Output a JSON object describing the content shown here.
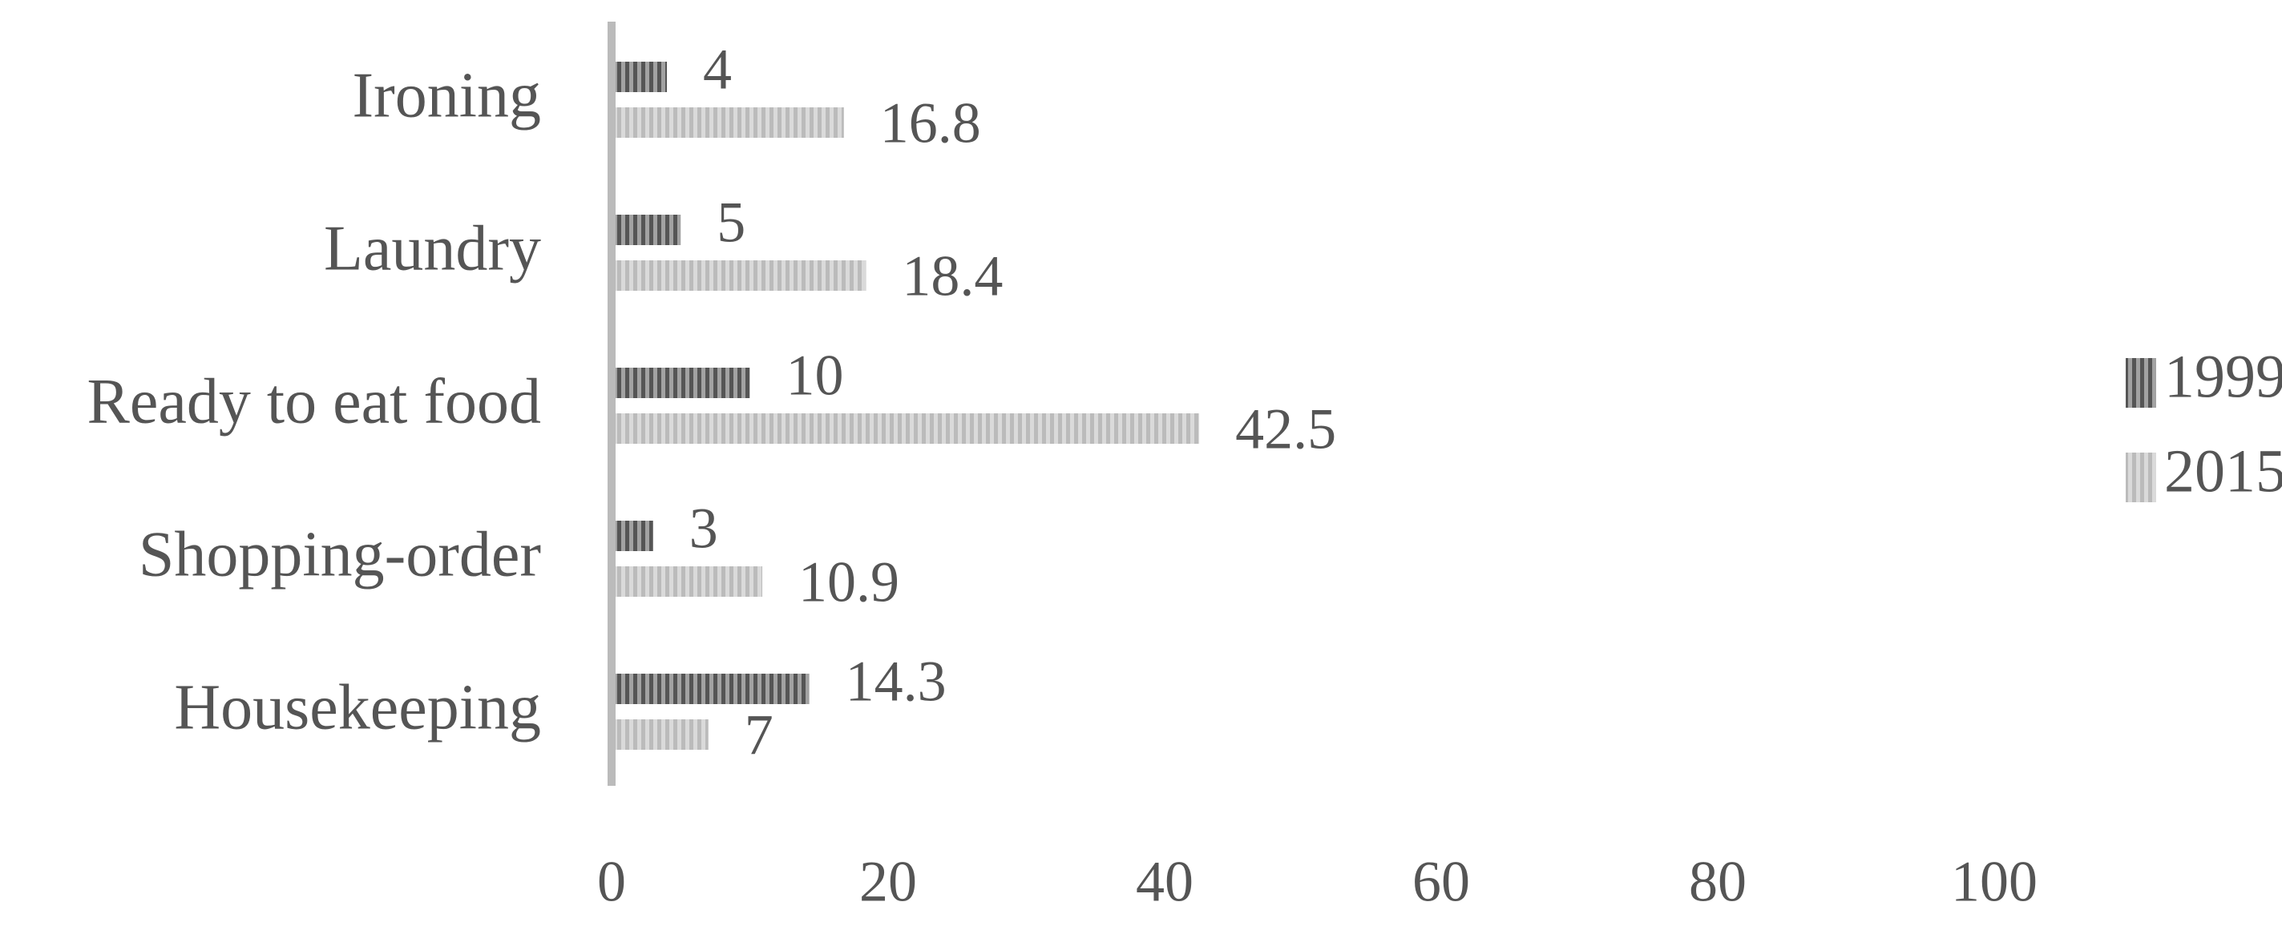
{
  "chart_data": {
    "type": "hbar",
    "categories": [
      "Ironing",
      "Laundry",
      "Ready to eat food",
      "Shopping-order",
      "Housekeeping"
    ],
    "series": [
      {
        "name": "1999",
        "color": "#555555",
        "values": [
          4,
          5,
          10,
          3,
          14.3
        ]
      },
      {
        "name": "2015",
        "color": "#bbbbbb",
        "values": [
          16.8,
          18.4,
          42.5,
          10.9,
          7
        ]
      }
    ],
    "xlim": [
      0,
      100
    ],
    "xticks": [
      0,
      20,
      40,
      60,
      80,
      100
    ],
    "legend": "right"
  }
}
